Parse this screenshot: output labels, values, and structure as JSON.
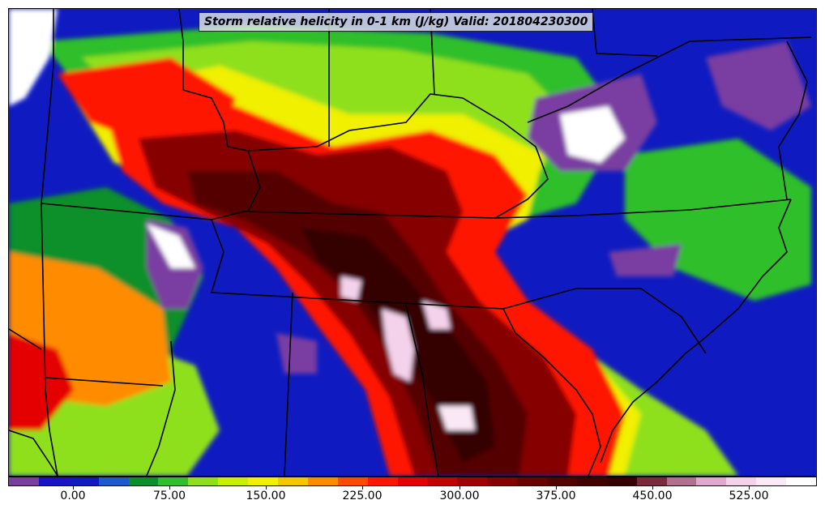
{
  "title": "Storm relative helicity in 0-1 km (J/kg) Valid: 201804230300",
  "colorbar": {
    "colors": [
      "#7a3ea1",
      "#1a12c4",
      "#0f1bc0",
      "#1a5bd0",
      "#0a8f2a",
      "#2fbf2a",
      "#8fe01a",
      "#c8f000",
      "#f0f000",
      "#f7c400",
      "#ff8c00",
      "#ff4a00",
      "#ff1500",
      "#e40000",
      "#c40000",
      "#a20000",
      "#860000",
      "#6a0000",
      "#540000",
      "#420000",
      "#360000",
      "#7a2a3a",
      "#b07090",
      "#e0a8d0",
      "#f4d2ec",
      "#fae8f6",
      "#ffffff"
    ],
    "ticks": [
      "0.00",
      "75.00",
      "150.00",
      "225.00",
      "300.00",
      "375.00",
      "450.00",
      "525.00"
    ]
  },
  "legend_colors": {
    "low_purple": "#7a3ea1",
    "blue": "#0f1bc0",
    "green": "#0a8f2a",
    "yellow": "#f0f000",
    "red": "#ff1500",
    "darkred": "#6a0000",
    "pink": "#f4d2ec"
  }
}
